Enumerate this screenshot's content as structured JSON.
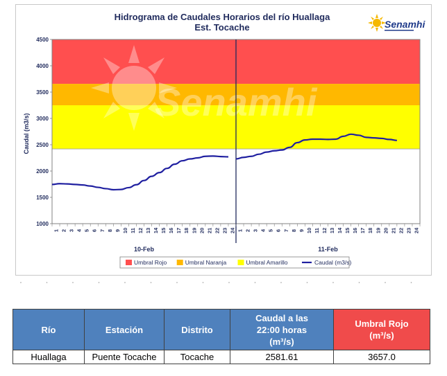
{
  "chart_data": {
    "type": "line",
    "title": "Hidrograma de Caudales Horarios del río Huallaga",
    "subtitle": "Est. Tocache",
    "ylabel": "Caudal  (m3/s)",
    "ylim": [
      1000,
      4500
    ],
    "yticks": [
      1000,
      1500,
      2000,
      2500,
      3000,
      3500,
      4000,
      4500
    ],
    "hours_per_day": 24,
    "days": [
      "10-Feb",
      "11-Feb"
    ],
    "x_tick_labels": [
      "1",
      "2",
      "3",
      "4",
      "5",
      "6",
      "7",
      "8",
      "9",
      "10",
      "11",
      "12",
      "13",
      "14",
      "15",
      "16",
      "17",
      "18",
      "19",
      "20",
      "21",
      "22",
      "23",
      "24"
    ],
    "thresholds": [
      {
        "name": "Umbral Rojo",
        "from": 3657.0,
        "to": 4500,
        "color": "#ff4f4f"
      },
      {
        "name": "Umbral Naranja",
        "from": 3250,
        "to": 3657.0,
        "color": "#ffb800"
      },
      {
        "name": "Umbral Amarillo",
        "from": 2420,
        "to": 3250,
        "color": "#ffff00"
      }
    ],
    "series": [
      {
        "name": "Caudal (m3/s)",
        "color": "#1f1fa0",
        "day1": [
          1745,
          1760,
          1755,
          1745,
          1735,
          1715,
          1690,
          1665,
          1645,
          1650,
          1685,
          1740,
          1820,
          1900,
          1970,
          2050,
          2130,
          2195,
          2230,
          2250,
          2280,
          2285,
          2275,
          2270
        ],
        "day2": [
          2230,
          2260,
          2280,
          2320,
          2360,
          2385,
          2400,
          2450,
          2540,
          2590,
          2605,
          2605,
          2600,
          2605,
          2660,
          2700,
          2680,
          2640,
          2630,
          2620,
          2600,
          2581.61
        ]
      }
    ],
    "legend_position": "bottom"
  },
  "watermark": "Senamhi",
  "logo": {
    "text": "Senamhi"
  },
  "table": {
    "headers": {
      "rio": "Río",
      "estacion": "Estación",
      "distrito": "Distrito",
      "caudal_line1": "Caudal a las",
      "caudal_line2": "22:00 horas",
      "caudal_line3": "(m³/s)",
      "umbral_line1": "Umbral Rojo",
      "umbral_line2": "(m³/s)"
    },
    "row": {
      "rio": "Huallaga",
      "estacion": "Puente Tocache",
      "distrito": "Tocache",
      "caudal": "2581.61",
      "umbral": "3657.0"
    }
  }
}
